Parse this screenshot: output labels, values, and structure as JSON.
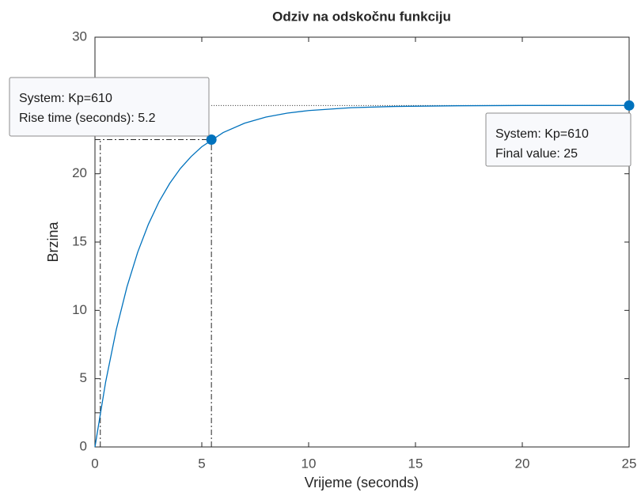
{
  "chart_data": {
    "type": "line",
    "title": "Odziv na odskočnu funkciju",
    "x_label": "Vrijeme (seconds)",
    "y_label": "Brzina",
    "x": [
      0,
      0.5,
      1,
      1.5,
      2,
      2.5,
      3,
      3.5,
      4,
      4.5,
      5,
      6,
      7,
      8,
      9,
      10,
      12,
      14,
      17,
      20,
      25
    ],
    "series": [
      {
        "name": "System: Kp=610",
        "color": "#0072bd",
        "values": [
          0,
          4.76,
          8.61,
          11.73,
          14.26,
          16.3,
          17.96,
          19.3,
          20.39,
          21.26,
          21.98,
          23.02,
          23.7,
          24.15,
          24.44,
          24.63,
          24.84,
          24.93,
          24.98,
          25,
          25
        ]
      }
    ],
    "xlim": [
      0,
      25
    ],
    "xticks": [
      0,
      5,
      10,
      15,
      20,
      25
    ],
    "ylim": [
      0,
      30
    ],
    "yticks": [
      0,
      5,
      10,
      15,
      20,
      25,
      30
    ],
    "grid": false,
    "rise_time": {
      "x_start": 0.25,
      "x_end": 5.45,
      "y_start": 2.5,
      "y_end": 22.5,
      "lines": [
        "System: Kp=610",
        "Rise time (seconds): 5.2"
      ]
    },
    "final_value": {
      "x": 25,
      "y": 25,
      "lines": [
        "System: Kp=610",
        "Final value: 25"
      ]
    }
  }
}
